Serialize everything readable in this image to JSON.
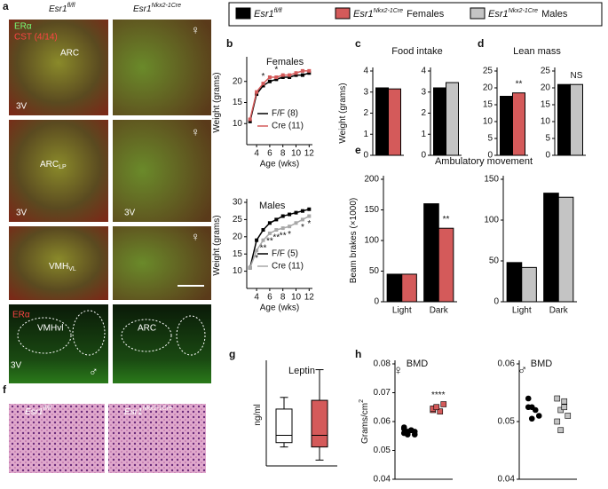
{
  "figure": {
    "letters": [
      "a",
      "b",
      "c",
      "d",
      "e",
      "f",
      "g",
      "h"
    ],
    "legend": [
      {
        "base": "Esr1",
        "sup": "fl/fl",
        "suffix": null,
        "color": "#000000"
      },
      {
        "base": "Esr1",
        "sup": "Nkx2-1Cre",
        "suffix": "Females",
        "color": "#d45a5a"
      },
      {
        "base": "Esr1",
        "sup": "Nkx2-1Cre",
        "suffix": "Males",
        "color": "#c4c4c4"
      }
    ],
    "panel_a": {
      "header": [
        {
          "base": "Esr1",
          "sup": "fl/fl"
        },
        {
          "base": "Esr1",
          "sup": "Nkx2-1Cre"
        }
      ],
      "labels": [
        "ERα",
        "CST (4/14)",
        "ARC",
        "3V",
        "♀",
        "ARC",
        "LP",
        "3V",
        "3V",
        "♀",
        "VMH",
        "VL",
        "♀",
        "ERα",
        "VMHvl",
        "3V",
        "♂",
        "ARC"
      ]
    },
    "panel_f": {
      "header": [
        {
          "base": "Esr1",
          "sup": "fl/fl"
        },
        {
          "base": "Esr1",
          "sup": "Nkx2-1Cre"
        }
      ]
    }
  },
  "chart_data": [
    {
      "type": "line",
      "title": "Females",
      "xlabel": "Age (wks)",
      "ylabel": "Weight (grams)",
      "x": [
        3,
        4,
        5,
        6,
        7,
        8,
        9,
        10,
        11,
        12
      ],
      "xlim": [
        2.5,
        12.5
      ],
      "xticks": [
        4,
        6,
        8,
        10,
        12
      ],
      "ylim": [
        5,
        25
      ],
      "yticks": [
        10,
        15,
        20
      ],
      "series": [
        {
          "name": "F/F (8)",
          "color": "#000000",
          "values": [
            10.5,
            17,
            19,
            20,
            20.5,
            21,
            21,
            21.5,
            21.5,
            22
          ]
        },
        {
          "name": "Cre (11)",
          "color": "#d45a5a",
          "values": [
            11,
            17.5,
            19.5,
            21,
            21,
            21.5,
            21.5,
            22,
            22.5,
            22.5
          ]
        }
      ],
      "annotations": [
        {
          "text": "*",
          "x": 5
        },
        {
          "text": "*",
          "x": 7
        }
      ]
    },
    {
      "type": "line",
      "title": "Males",
      "xlabel": "Age (wks)",
      "ylabel": "Weight (grams)",
      "x": [
        3,
        4,
        5,
        6,
        7,
        8,
        9,
        10,
        11,
        12
      ],
      "xlim": [
        2.5,
        12.5
      ],
      "xticks": [
        4,
        6,
        8,
        10,
        12
      ],
      "ylim": [
        5,
        30
      ],
      "yticks": [
        10,
        15,
        20,
        25,
        30
      ],
      "series": [
        {
          "name": "F/F (5)",
          "color": "#000000",
          "values": [
            11,
            19,
            22,
            24,
            25,
            26,
            26.5,
            27,
            27.5,
            28
          ]
        },
        {
          "name": "Cre (11)",
          "color": "#a8a8a8",
          "values": [
            11,
            16,
            19,
            21,
            22,
            22.5,
            23,
            24,
            25,
            26
          ]
        }
      ],
      "annotations": [
        {
          "text": "*",
          "x": 4
        },
        {
          "text": "**",
          "x": 5
        },
        {
          "text": "**",
          "x": 6
        },
        {
          "text": "**",
          "x": 7
        },
        {
          "text": "**",
          "x": 8
        },
        {
          "text": "*",
          "x": 9
        },
        {
          "text": "*",
          "x": 11
        },
        {
          "text": "*",
          "x": 12
        }
      ]
    },
    {
      "type": "bar",
      "title": "Food intake",
      "ylabel": "Weight (grams)",
      "categories": [
        null
      ],
      "ylim": [
        0,
        4
      ],
      "yticks": [
        0,
        1,
        2,
        3,
        4
      ],
      "series": [
        {
          "color": "#000000",
          "values": [
            3.2
          ]
        },
        {
          "color": "#d45a5a",
          "values": [
            3.15
          ]
        }
      ]
    },
    {
      "type": "bar",
      "categories": [
        null
      ],
      "ylim": [
        0,
        4
      ],
      "yticks": [
        0,
        1,
        2,
        3,
        4
      ],
      "series": [
        {
          "color": "#000000",
          "values": [
            3.2
          ]
        },
        {
          "color": "#c4c4c4",
          "values": [
            3.45
          ]
        }
      ]
    },
    {
      "type": "bar",
      "title": "Lean mass",
      "categories": [
        null
      ],
      "ylim": [
        0,
        25
      ],
      "yticks": [
        0,
        5,
        10,
        15,
        20,
        25
      ],
      "series": [
        {
          "color": "#000000",
          "values": [
            17.5
          ]
        },
        {
          "color": "#d45a5a",
          "values": [
            18.5
          ]
        }
      ],
      "annotations": [
        {
          "text": "**",
          "series": 1,
          "index": 0
        }
      ]
    },
    {
      "type": "bar",
      "categories": [
        null
      ],
      "ylim": [
        0,
        25
      ],
      "yticks": [
        0,
        5,
        10,
        15,
        20,
        25
      ],
      "series": [
        {
          "color": "#000000",
          "values": [
            21
          ]
        },
        {
          "color": "#c4c4c4",
          "values": [
            21
          ]
        }
      ],
      "annotations": [
        {
          "text": "NS",
          "series": 1,
          "index": 0
        }
      ]
    },
    {
      "type": "bar",
      "title": "Ambulatory movement",
      "ylabel": "Beam brakes (×1000)",
      "categories": [
        "Light",
        "Dark"
      ],
      "ylim": [
        0,
        200
      ],
      "yticks": [
        0,
        50,
        100,
        150,
        200
      ],
      "series": [
        {
          "color": "#000000",
          "values": [
            45,
            160
          ]
        },
        {
          "color": "#d45a5a",
          "values": [
            45,
            120
          ]
        }
      ],
      "annotations": [
        {
          "text": "**",
          "series": 1,
          "index": 1
        }
      ]
    },
    {
      "type": "bar",
      "categories": [
        "Light",
        "Dark"
      ],
      "ylim": [
        0,
        150
      ],
      "yticks": [
        0,
        50,
        100,
        150
      ],
      "series": [
        {
          "color": "#000000",
          "values": [
            48,
            133
          ]
        },
        {
          "color": "#c4c4c4",
          "values": [
            42,
            128
          ]
        }
      ]
    },
    {
      "type": "box",
      "title": "Leptin",
      "ylabel": "ng/ml",
      "ylim": [
        2,
        9
      ],
      "series": [
        {
          "color": "#ffffff",
          "stats": {
            "min": 3.3,
            "q1": 3.6,
            "median": 4.1,
            "q3": 5.9,
            "max": 6.7
          }
        },
        {
          "color": "#d45a5a",
          "stats": {
            "min": 2.4,
            "q1": 3.3,
            "median": 4.1,
            "q3": 6.5,
            "max": 8.6
          }
        }
      ]
    },
    {
      "type": "dot",
      "title": "BMD",
      "symbol": "♀",
      "ylabel": "Grams/cm",
      "ylabel_sup": "2",
      "ylim": [
        0.04,
        0.08
      ],
      "yticks": [
        0.04,
        0.05,
        0.06,
        0.07,
        0.08
      ],
      "series": [
        {
          "color": "#000000",
          "values": [
            0.056,
            0.0565,
            0.057,
            0.0555,
            0.0575,
            0.056,
            0.057,
            0.0565,
            0.058,
            0.0555
          ]
        },
        {
          "color": "#d45a5a",
          "values": [
            0.064,
            0.065,
            0.0635,
            0.066,
            0.0645,
            0.065
          ]
        }
      ],
      "annotations": [
        {
          "text": "****",
          "series": 1,
          "index": 3
        }
      ]
    },
    {
      "type": "dot",
      "title": "BMD",
      "symbol": "♂",
      "ylim": [
        0.04,
        0.06
      ],
      "yticks": [
        0.04,
        0.05,
        0.06
      ],
      "series": [
        {
          "color": "#000000",
          "values": [
            0.054,
            0.0525,
            0.052,
            0.051,
            0.0525,
            0.0505
          ]
        },
        {
          "color": "#c4c4c4",
          "values": [
            0.054,
            0.052,
            0.0525,
            0.051,
            0.05,
            0.0485,
            0.0535
          ]
        }
      ]
    }
  ]
}
